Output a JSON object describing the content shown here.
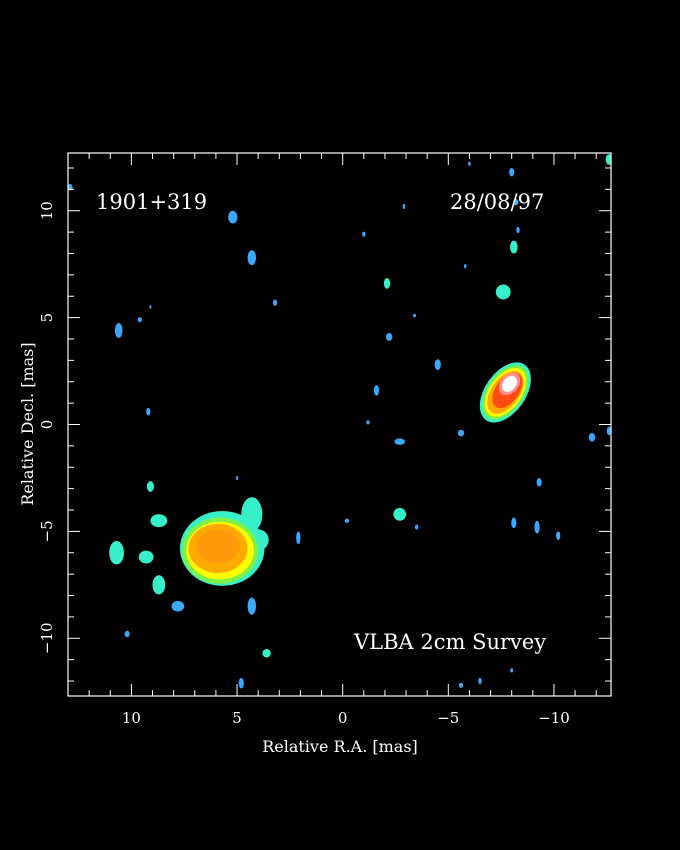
{
  "image": {
    "source_label": "1901+319",
    "date_label": "28/08/97",
    "survey_label": "VLBA 2cm Survey",
    "xlabel": "Relative R.A. [mas]",
    "ylabel": "Relative Decl. [mas]",
    "x_range": [
      13,
      -12.7
    ],
    "y_range": [
      -12.7,
      12.7
    ],
    "x_ticks": [
      {
        "value": 10,
        "label": "10"
      },
      {
        "value": 5,
        "label": "5"
      },
      {
        "value": 0,
        "label": "0"
      },
      {
        "value": -5,
        "label": "−5"
      },
      {
        "value": -10,
        "label": "−10"
      }
    ],
    "y_ticks": [
      {
        "value": 10,
        "label": "10"
      },
      {
        "value": 5,
        "label": "5"
      },
      {
        "value": 0,
        "label": "0"
      },
      {
        "value": -5,
        "label": "−5"
      },
      {
        "value": -10,
        "label": "−10"
      }
    ],
    "colors": {
      "background": "#000000",
      "frame": "#ffffff",
      "low": "#1e6cff",
      "low2": "#3aa8ff",
      "mid": "#38f0c8",
      "green": "#7ef048",
      "yellow": "#ffff00",
      "orange": "#ffaa00",
      "red": "#ff4a10",
      "peak": "#ffffff"
    }
  }
}
